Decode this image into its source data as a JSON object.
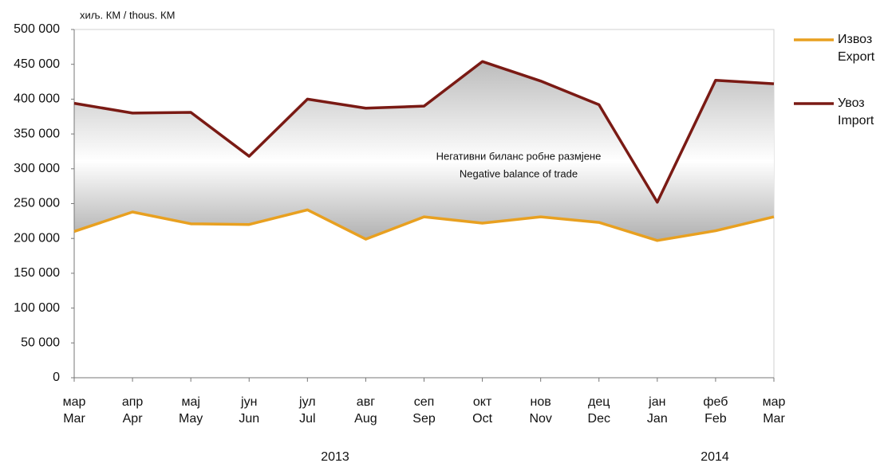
{
  "chart_data": {
    "type": "line",
    "unit_label": "хиљ. КМ / thous. КМ",
    "annotation": [
      "Негативни биланс робне размјене",
      "Negative balance of trade"
    ],
    "categories": [
      [
        "мар",
        "Mar"
      ],
      [
        "апр",
        "Apr"
      ],
      [
        "мај",
        "May"
      ],
      [
        "јун",
        "Jun"
      ],
      [
        "јул",
        "Jul"
      ],
      [
        "авг",
        "Aug"
      ],
      [
        "сеп",
        "Sep"
      ],
      [
        "окт",
        "Oct"
      ],
      [
        "нов",
        "Nov"
      ],
      [
        "дец",
        "Dec"
      ],
      [
        "јан",
        "Jan"
      ],
      [
        "феб",
        "Feb"
      ],
      [
        "мар",
        "Mar"
      ]
    ],
    "years": [
      "2013",
      "2014"
    ],
    "series": [
      {
        "name": [
          "Извоз",
          "Export"
        ],
        "color": "#e8a020",
        "values": [
          210000,
          238000,
          221000,
          220000,
          241000,
          199000,
          231000,
          222000,
          231000,
          223000,
          197000,
          211000,
          231000
        ]
      },
      {
        "name": [
          "Увоз",
          "Import"
        ],
        "color": "#7a1a14",
        "values": [
          394000,
          380000,
          381000,
          318000,
          400000,
          387000,
          390000,
          454000,
          426000,
          392000,
          252000,
          427000,
          422000
        ]
      }
    ],
    "ylim": [
      0,
      500000
    ],
    "yticks": [
      {
        "value": 0,
        "label": "0"
      },
      {
        "value": 50000,
        "label": "50 000"
      },
      {
        "value": 100000,
        "label": "100 000"
      },
      {
        "value": 150000,
        "label": "150 000"
      },
      {
        "value": 200000,
        "label": "200 000"
      },
      {
        "value": 250000,
        "label": "250 000"
      },
      {
        "value": 300000,
        "label": "300 000"
      },
      {
        "value": 350000,
        "label": "350 000"
      },
      {
        "value": 400000,
        "label": "400 000"
      },
      {
        "value": 450000,
        "label": "450 000"
      },
      {
        "value": 500000,
        "label": "500 000"
      }
    ]
  }
}
